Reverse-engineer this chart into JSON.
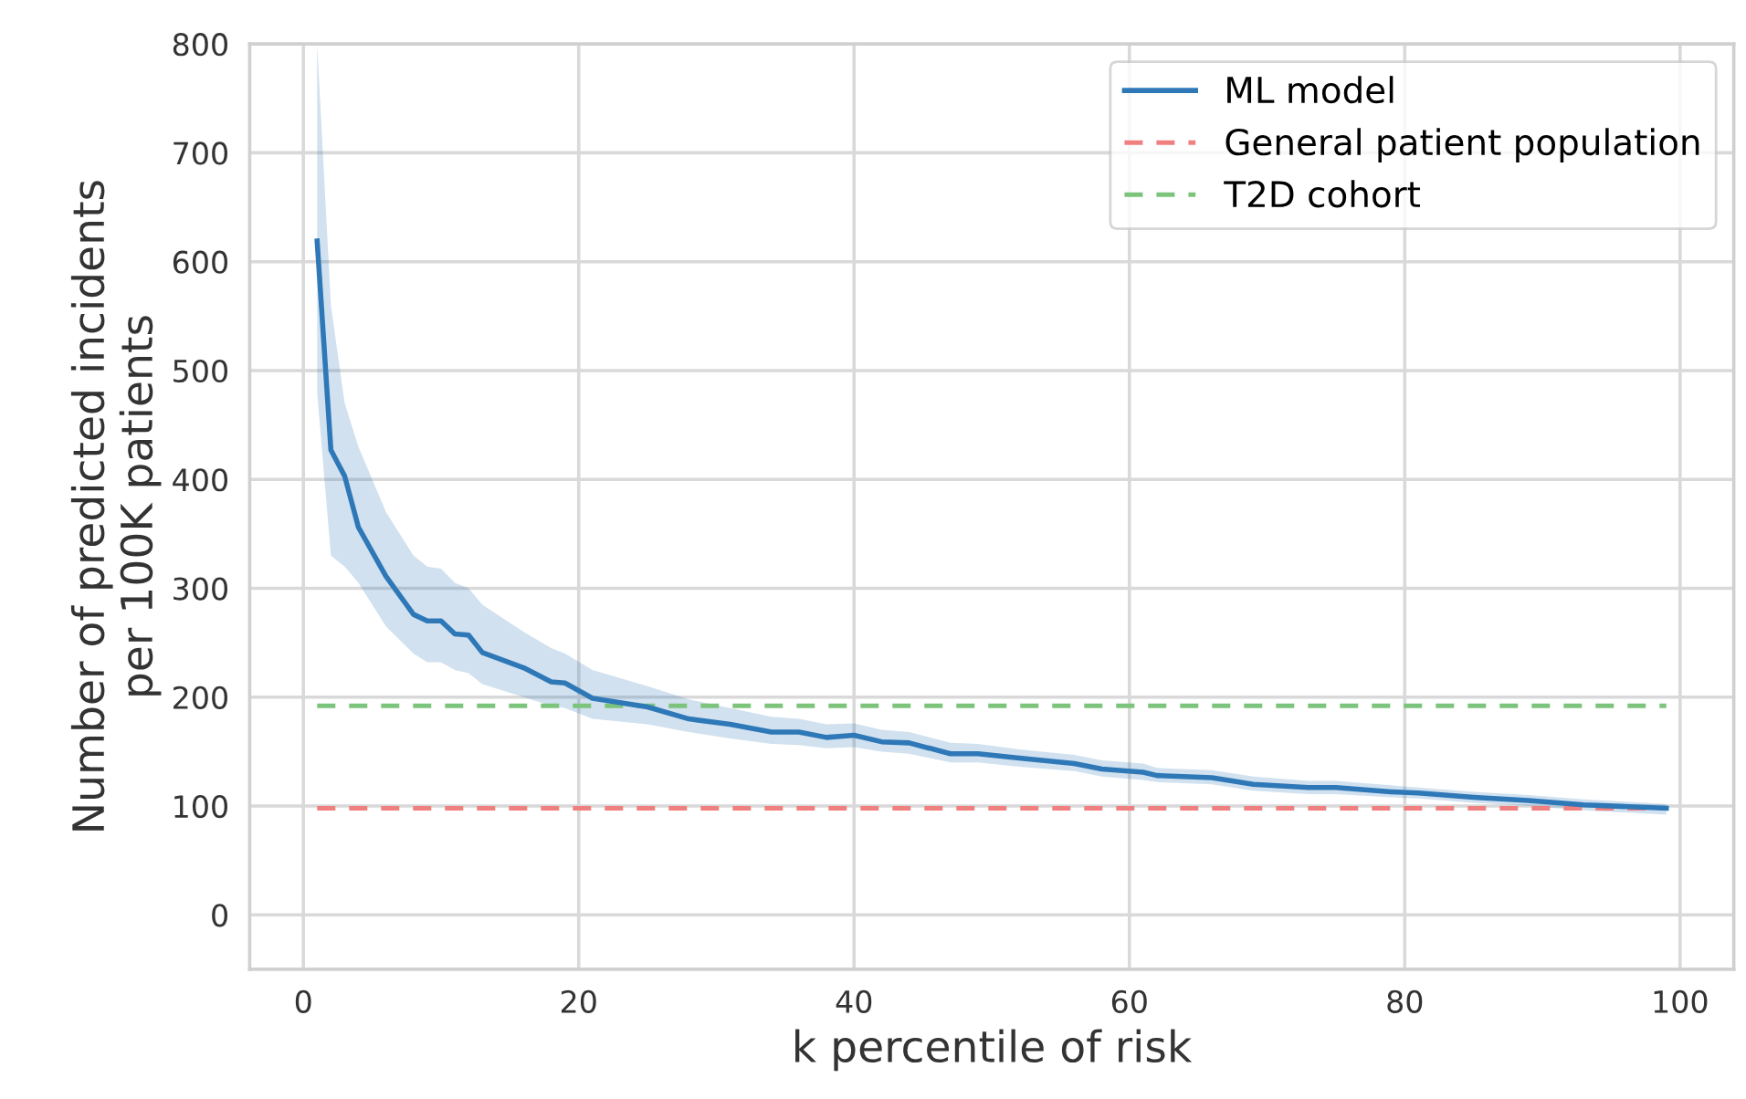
{
  "chart_data": {
    "type": "line",
    "xlabel": "k percentile of risk",
    "ylabel": "Number of predicted incidents\nper 100K patients",
    "xlim": [
      -3.9,
      103.9
    ],
    "xticks": [
      0,
      20,
      40,
      60,
      80,
      100
    ],
    "ylim": [
      -50,
      800
    ],
    "yticks": [
      0,
      100,
      200,
      300,
      400,
      500,
      600,
      700,
      800
    ],
    "grid": true,
    "legend": "top right",
    "line_style": "solid",
    "marker": "none",
    "series": [
      {
        "name": "ML model",
        "color": "#2e78b7",
        "x": [
          1,
          2,
          3,
          4,
          6,
          8,
          9,
          10,
          11,
          12,
          13,
          16,
          18,
          19,
          21,
          25,
          28,
          31,
          34,
          36,
          38,
          40,
          42,
          44,
          47,
          49,
          52,
          56,
          58,
          61,
          62,
          66,
          69,
          73,
          75,
          79,
          81,
          85,
          89,
          93,
          99
        ],
        "values": [
          619,
          427,
          403,
          356,
          311,
          276,
          270,
          270,
          258,
          257,
          241,
          227,
          214,
          213,
          199,
          191,
          180,
          175,
          168,
          168,
          163,
          165,
          159,
          158,
          148,
          148,
          144,
          139,
          134,
          131,
          128,
          126,
          120,
          117,
          117,
          113,
          112,
          108,
          105,
          101,
          98
        ],
        "lower": [
          480,
          330,
          320,
          305,
          265,
          240,
          232,
          232,
          225,
          222,
          212,
          200,
          192,
          190,
          180,
          175,
          168,
          162,
          157,
          156,
          153,
          154,
          150,
          148,
          140,
          140,
          136,
          132,
          127,
          124,
          122,
          120,
          114,
          111,
          111,
          108,
          107,
          103,
          100,
          96,
          92
        ],
        "upper": [
          800,
          560,
          470,
          430,
          370,
          330,
          320,
          318,
          305,
          300,
          285,
          260,
          245,
          240,
          225,
          210,
          198,
          190,
          182,
          180,
          175,
          176,
          170,
          168,
          158,
          157,
          152,
          147,
          142,
          139,
          135,
          133,
          127,
          123,
          123,
          119,
          117,
          113,
          110,
          106,
          102
        ]
      }
    ],
    "ref_lines": [
      {
        "axis": "y",
        "value": 98,
        "label": "General patient population",
        "color": "#f08080",
        "line_style": "dashed"
      },
      {
        "axis": "y",
        "value": 192,
        "label": "T2D cohort",
        "color": "#7cc47c",
        "line_style": "dashed"
      }
    ]
  }
}
